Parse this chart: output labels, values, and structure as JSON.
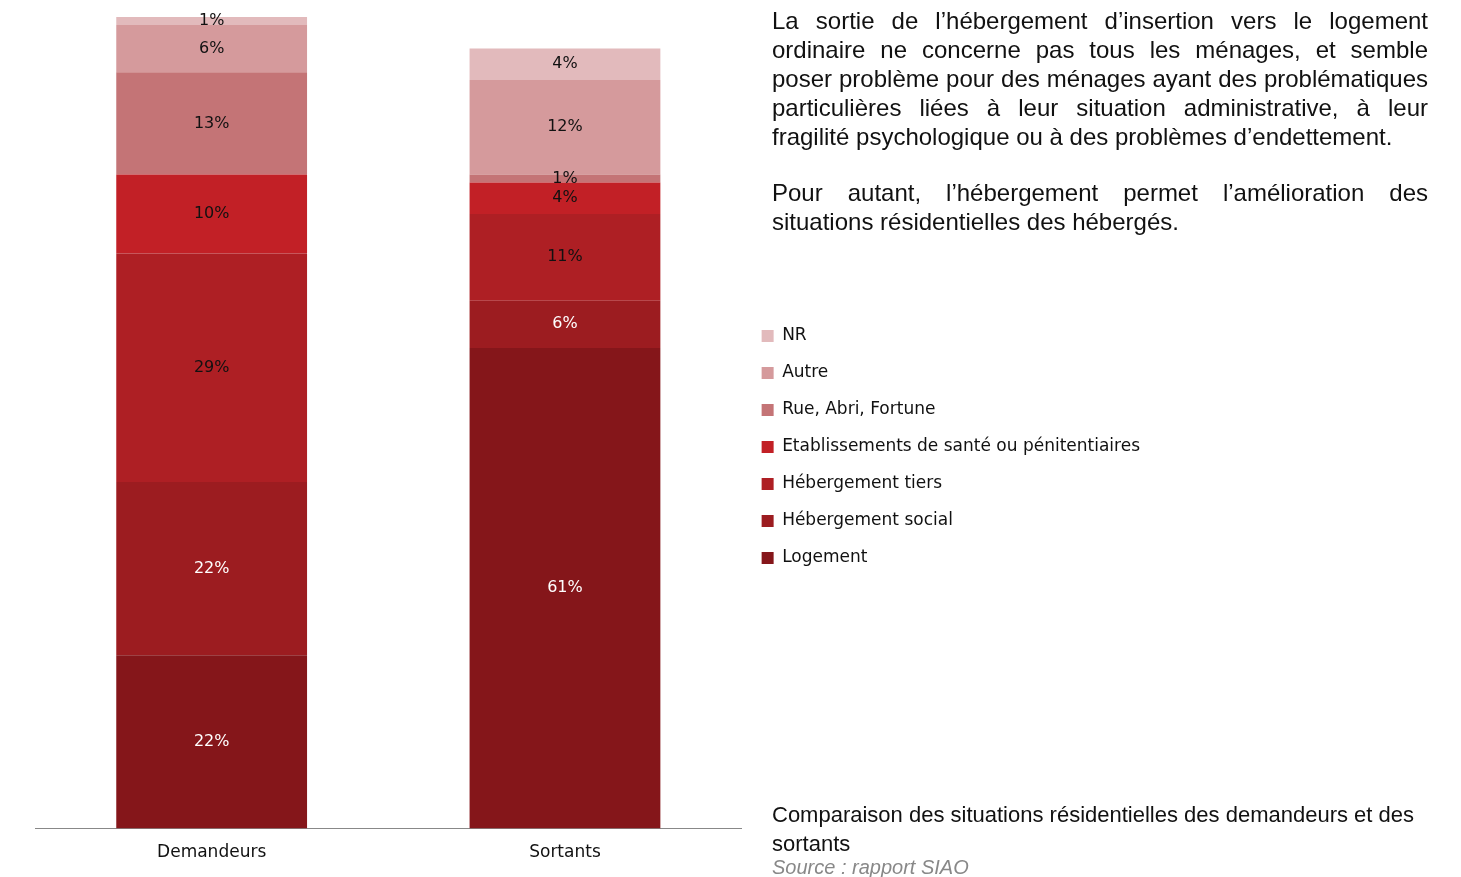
{
  "chart_data": {
    "type": "bar",
    "stacked": true,
    "title": "Comparaison des situations résidentielles des demandeurs et des sortants",
    "annotations": [
      "La sortie de l’hébergement d’insertion vers le logement ordinaire ne concerne pas tous les ménages, et semble poser problème pour des ménages ayant des problématiques particulières liées à leur situation administrative, à leur fragilité psychologique ou à des problèmes d’endettement.",
      "Pour autant, l’hébergement permet l’amélioration des situations résidentielles des hébergés.",
      "Source : rapport SIAO"
    ],
    "categories": [
      "Demandeurs",
      "Sortants"
    ],
    "legend": "right",
    "series": [
      {
        "name": "Logement",
        "color": "#85161a",
        "values": [
          22,
          61
        ],
        "value_labels": [
          "22%",
          "61%"
        ]
      },
      {
        "name": "Hébergement social",
        "color": "#9c1c20",
        "values": [
          22,
          6
        ],
        "value_labels": [
          "22%",
          "6%"
        ]
      },
      {
        "name": "Hébergement tiers",
        "color": "#ae1f24",
        "values": [
          29,
          11
        ],
        "value_labels": [
          "29%",
          "11%"
        ]
      },
      {
        "name": "Etablissements de santé ou pénitentiaires",
        "color": "#c22026",
        "values": [
          10,
          4
        ],
        "value_labels": [
          "10%",
          "4%"
        ]
      },
      {
        "name": "Rue, Abri, Fortune",
        "color": "#c47476",
        "values": [
          13,
          1
        ],
        "value_labels": [
          "13%",
          "1%"
        ]
      },
      {
        "name": "Autre",
        "color": "#d59a9c",
        "values": [
          6,
          12
        ],
        "value_labels": [
          "6%",
          "12%"
        ]
      },
      {
        "name": "NR",
        "color": "#e2babc",
        "values": [
          1,
          4
        ],
        "value_labels": [
          "1%",
          "4%"
        ]
      }
    ]
  }
}
